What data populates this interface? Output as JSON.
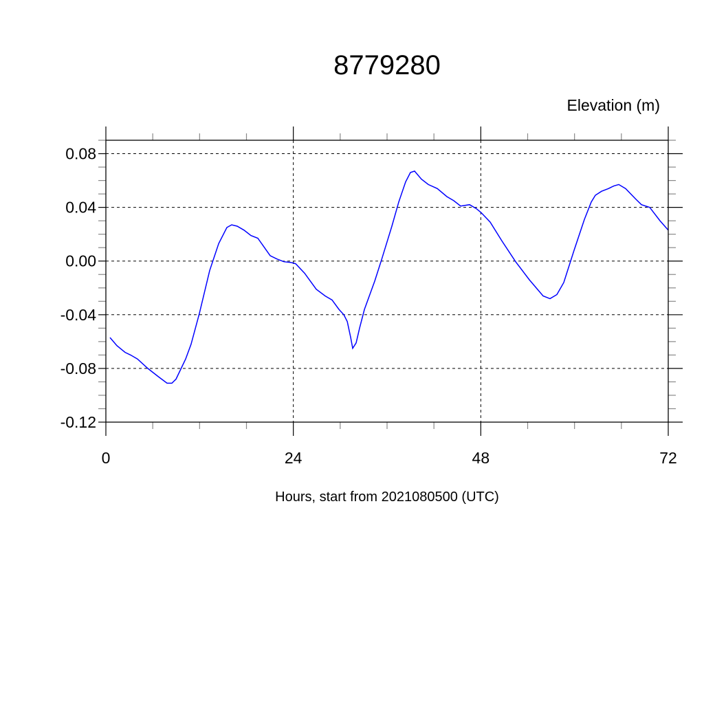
{
  "chart_data": {
    "type": "line",
    "title": "8779280",
    "ylabel": "Elevation (m)",
    "xlabel": "Hours, start from 2021080500 (UTC)",
    "xlim": [
      0,
      72
    ],
    "ylim": [
      -0.12,
      0.09
    ],
    "xticks": [
      0,
      24,
      48,
      72
    ],
    "xtick_labels": [
      "0",
      "24",
      "48",
      "72"
    ],
    "yticks": [
      0.08,
      0.04,
      0.0,
      -0.04,
      -0.08,
      -0.12
    ],
    "ytick_labels": [
      "0.08",
      "0.04",
      "0.00",
      "-0.04",
      "-0.08",
      "-0.12"
    ],
    "grid": true,
    "line_color": "#0000ff",
    "series": [
      {
        "x": [
          0.53,
          1.41,
          2.46,
          3.17,
          4.05,
          5.37,
          6.69,
          7.83,
          8.45,
          8.98,
          10.21,
          10.91,
          11.97,
          13.29,
          14.44,
          15.49,
          16.11,
          16.81,
          17.69,
          18.57,
          19.45,
          21.04,
          21.92,
          22.8,
          23.68,
          24.29,
          25.44,
          26.93,
          28.08,
          28.96,
          29.84,
          30.46,
          30.9,
          31.34,
          31.6,
          32.04,
          32.48,
          33.1,
          34.42,
          35.3,
          36.62,
          37.5,
          38.38,
          38.99,
          39.52,
          40.4,
          41.28,
          42.43,
          43.66,
          44.54,
          45.42,
          46.56,
          47.44,
          48.06,
          49.2,
          50.7,
          52.46,
          54.22,
          55.98,
          56.86,
          57.74,
          58.62,
          59.94,
          61.26,
          62.14,
          62.67,
          63.46,
          64.34,
          65.05,
          65.66,
          66.54,
          67.86,
          68.57,
          69.62,
          70.94,
          72.0
        ],
        "y": [
          -0.057,
          -0.063,
          -0.068,
          -0.07,
          -0.073,
          -0.08,
          -0.086,
          -0.091,
          -0.091,
          -0.088,
          -0.073,
          -0.062,
          -0.039,
          -0.007,
          0.013,
          0.025,
          0.027,
          0.026,
          0.023,
          0.019,
          0.017,
          0.004,
          0.0015,
          -0.0005,
          -0.001,
          -0.002,
          -0.009,
          -0.021,
          -0.026,
          -0.029,
          -0.036,
          -0.04,
          -0.045,
          -0.057,
          -0.065,
          -0.061,
          -0.05,
          -0.036,
          -0.015,
          0.001,
          0.026,
          0.044,
          0.059,
          0.066,
          0.067,
          0.061,
          0.057,
          0.054,
          0.048,
          0.045,
          0.041,
          0.042,
          0.039,
          0.036,
          0.029,
          0.015,
          -0.0005,
          -0.014,
          -0.026,
          -0.028,
          -0.025,
          -0.016,
          0.008,
          0.031,
          0.044,
          0.049,
          0.052,
          0.054,
          0.056,
          0.057,
          0.054,
          0.046,
          0.042,
          0.04,
          0.03,
          0.023
        ]
      }
    ]
  }
}
